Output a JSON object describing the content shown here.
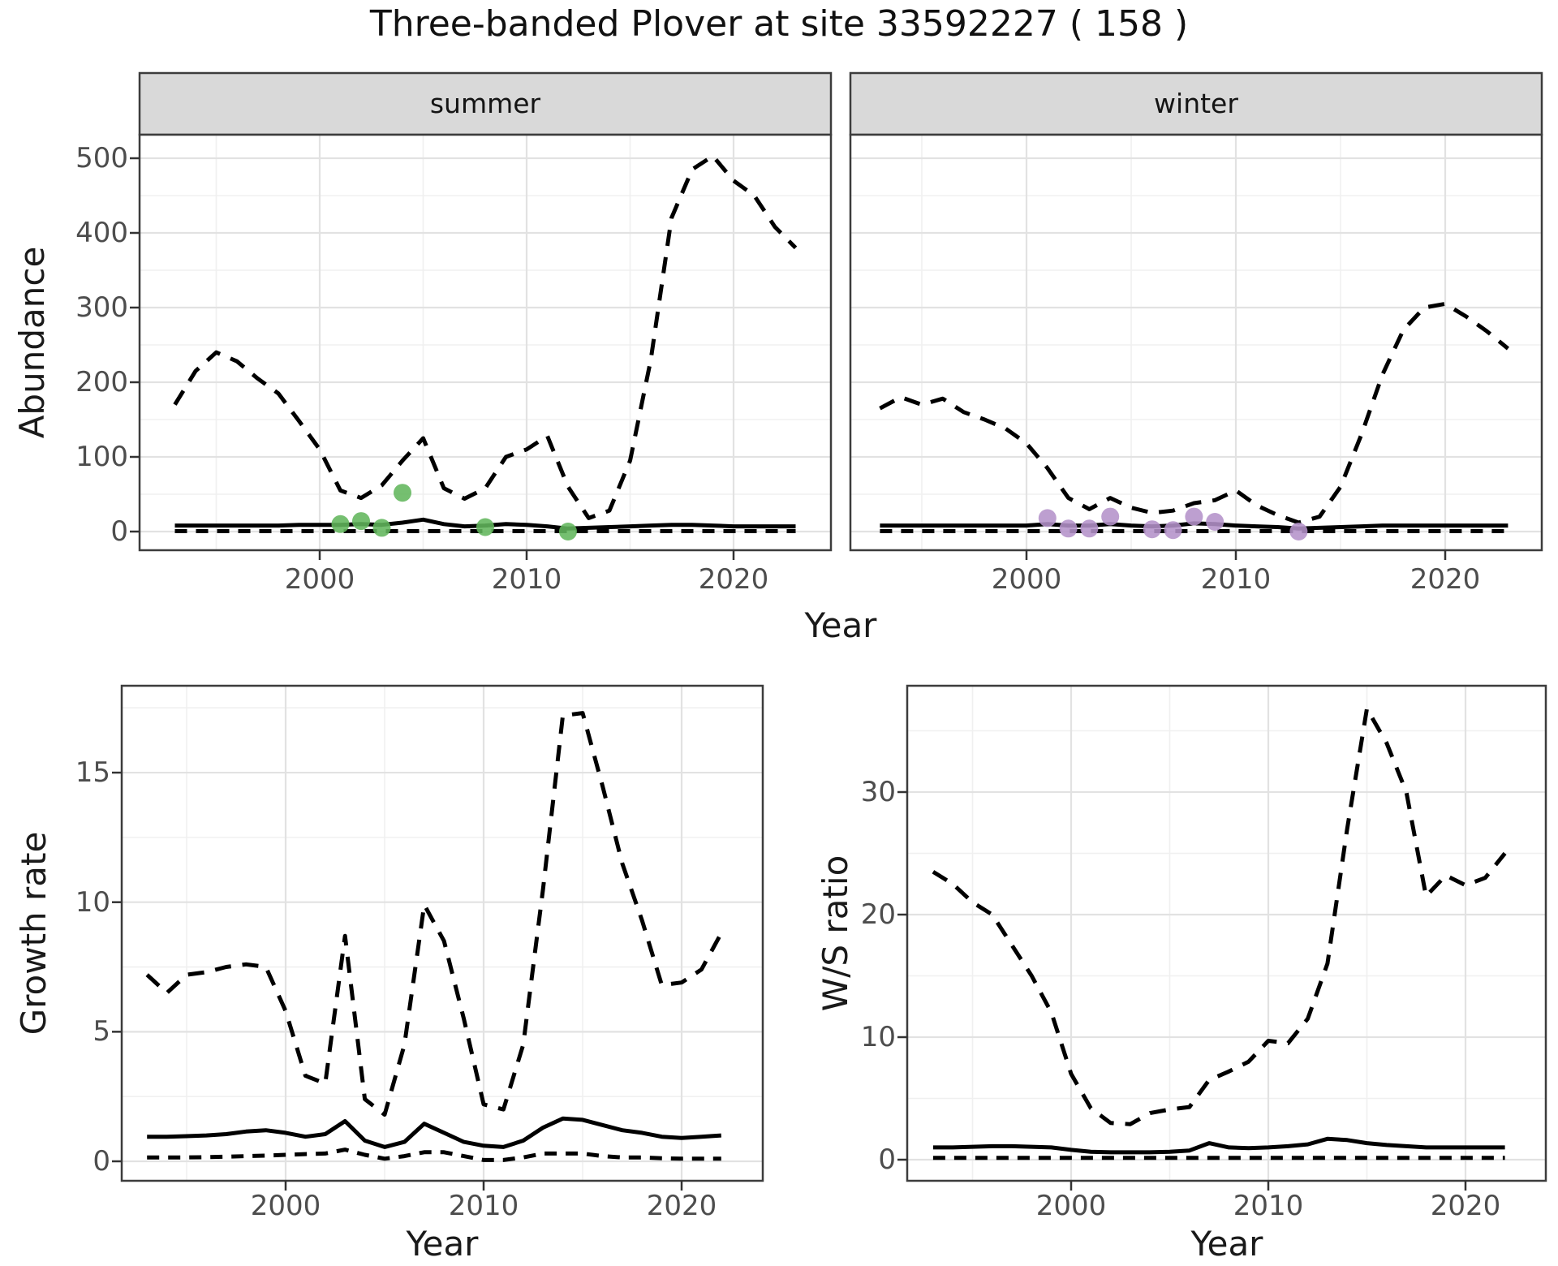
{
  "title": "Three-banded Plover at site 33592227 ( 158 )",
  "top_row": {
    "y_label": "Abundance",
    "x_label": "Year"
  },
  "colors": {
    "summer_points": "#62b65c",
    "winter_points": "#b492ca",
    "line": "#000000",
    "grid_major": "#e2e2e2",
    "grid_minor": "#f0f0f0",
    "panel_border": "#3c3c3c",
    "strip_bg": "#d9d9d9",
    "axis_text": "#4d4d4d",
    "tick_mark": "#333333"
  },
  "chart_data": [
    {
      "id": "abundance-summer",
      "type": "line",
      "facet_label": "summer",
      "ylabel": "Abundance",
      "xlabel": "Year",
      "axis_y": true,
      "x_ticks": [
        2000,
        2010,
        2020
      ],
      "x_minor": [
        1995,
        2005,
        2015
      ],
      "y_ticks": [
        0,
        100,
        200,
        300,
        400,
        500
      ],
      "y_minor": [
        50,
        150,
        250,
        350,
        450
      ],
      "xlim": [
        1991.3,
        2024.7
      ],
      "ylim": [
        -26,
        531
      ],
      "years": [
        1993,
        1994,
        1995,
        1996,
        1997,
        1998,
        1999,
        2000,
        2001,
        2002,
        2003,
        2004,
        2005,
        2006,
        2007,
        2008,
        2009,
        2010,
        2011,
        2012,
        2013,
        2014,
        2015,
        2016,
        2017,
        2018,
        2019,
        2020,
        2021,
        2022,
        2023
      ],
      "series": [
        {
          "name": "upper-ci",
          "style": "dashed",
          "values": [
            170,
            215,
            240,
            228,
            205,
            185,
            148,
            110,
            55,
            45,
            62,
            95,
            125,
            58,
            44,
            58,
            100,
            110,
            128,
            60,
            18,
            28,
            95,
            230,
            420,
            485,
            503,
            470,
            450,
            408,
            380
          ]
        },
        {
          "name": "median",
          "style": "solid",
          "values": [
            8,
            8,
            8,
            8,
            8,
            8,
            9,
            9,
            9,
            10,
            9,
            12,
            16,
            10,
            7,
            8,
            10,
            9,
            7,
            4,
            5,
            6,
            7,
            8,
            9,
            9,
            8,
            7,
            7,
            7,
            7
          ]
        },
        {
          "name": "lower-ci",
          "style": "dashed-short",
          "values": [
            0.5,
            0.5,
            0.5,
            0.5,
            0.5,
            0.5,
            0.5,
            0.5,
            0.5,
            0.5,
            0.5,
            0.5,
            0.5,
            0.5,
            0.5,
            0.5,
            0.5,
            0.5,
            0.5,
            0.5,
            0.5,
            0.5,
            0.5,
            0.5,
            0.5,
            0.5,
            0.5,
            0.5,
            0.5,
            0.5,
            0.5
          ]
        }
      ],
      "points": {
        "name": "observed-counts",
        "color_key": "summer_points",
        "years": [
          2001,
          2002,
          2003,
          2004,
          2008,
          2012
        ],
        "values": [
          10,
          14,
          5,
          52,
          6,
          0
        ]
      }
    },
    {
      "id": "abundance-winter",
      "type": "line",
      "facet_label": "winter",
      "ylabel": "Abundance",
      "xlabel": "Year",
      "axis_y": false,
      "x_ticks": [
        2000,
        2010,
        2020
      ],
      "x_minor": [
        1995,
        2005,
        2015
      ],
      "y_ticks": [
        0,
        100,
        200,
        300,
        400,
        500
      ],
      "y_minor": [
        50,
        150,
        250,
        350,
        450
      ],
      "xlim": [
        1991.6,
        2024.6
      ],
      "ylim": [
        -26,
        531
      ],
      "years": [
        1993,
        1994,
        1995,
        1996,
        1997,
        1998,
        1999,
        2000,
        2001,
        2002,
        2003,
        2004,
        2005,
        2006,
        2007,
        2008,
        2009,
        2010,
        2011,
        2012,
        2013,
        2014,
        2015,
        2016,
        2017,
        2018,
        2019,
        2020,
        2021,
        2022,
        2023
      ],
      "series": [
        {
          "name": "upper-ci",
          "style": "dashed",
          "values": [
            165,
            180,
            170,
            178,
            160,
            150,
            138,
            118,
            85,
            45,
            30,
            45,
            32,
            25,
            28,
            38,
            42,
            55,
            35,
            22,
            12,
            20,
            60,
            130,
            210,
            270,
            300,
            305,
            288,
            268,
            245
          ]
        },
        {
          "name": "median",
          "style": "solid",
          "values": [
            8,
            8,
            8,
            8,
            8,
            8,
            8,
            8,
            10,
            8,
            8,
            10,
            8,
            7,
            8,
            11,
            10,
            8,
            7,
            6,
            4,
            5,
            6,
            7,
            8,
            8,
            8,
            8,
            8,
            8,
            8
          ]
        },
        {
          "name": "lower-ci",
          "style": "dashed-short",
          "values": [
            0.5,
            0.5,
            0.5,
            0.5,
            0.5,
            0.5,
            0.5,
            0.5,
            0.5,
            0.5,
            0.5,
            0.5,
            0.5,
            0.5,
            0.5,
            0.5,
            0.5,
            0.5,
            0.5,
            0.5,
            0.5,
            0.5,
            0.5,
            0.5,
            0.5,
            0.5,
            0.5,
            0.5,
            0.5,
            0.5,
            0.5
          ]
        }
      ],
      "points": {
        "name": "observed-counts",
        "color_key": "winter_points",
        "years": [
          2001,
          2002,
          2003,
          2004,
          2006,
          2007,
          2008,
          2009,
          2013
        ],
        "values": [
          18,
          4,
          4,
          20,
          3,
          2,
          20,
          13,
          0
        ]
      }
    },
    {
      "id": "growth-rate",
      "type": "line",
      "facet_label": null,
      "ylabel": "Growth rate",
      "xlabel": "Year",
      "axis_y": true,
      "x_ticks": [
        2000,
        2010,
        2020
      ],
      "x_minor": [
        1995,
        2005,
        2015
      ],
      "y_ticks": [
        0,
        5,
        10,
        15
      ],
      "y_minor": [
        2.5,
        7.5,
        12.5,
        17.5
      ],
      "xlim": [
        1991.7,
        2024.1
      ],
      "ylim": [
        -0.9,
        18.3
      ],
      "years": [
        1993,
        1994,
        1995,
        1996,
        1997,
        1998,
        1999,
        2000,
        2001,
        2002,
        2003,
        2004,
        2005,
        2006,
        2007,
        2008,
        2009,
        2010,
        2011,
        2012,
        2013,
        2014,
        2015,
        2016,
        2017,
        2018,
        2019,
        2020,
        2021,
        2022
      ],
      "series": [
        {
          "name": "upper-ci",
          "style": "dashed",
          "values": [
            7.2,
            6.5,
            7.2,
            7.3,
            7.5,
            7.6,
            7.5,
            5.8,
            3.3,
            3.0,
            8.7,
            2.4,
            1.8,
            4.5,
            9.9,
            8.5,
            5.5,
            2.2,
            2.0,
            4.5,
            10.5,
            17.2,
            17.3,
            14.5,
            11.5,
            9.3,
            6.8,
            6.9,
            7.4,
            8.8
          ]
        },
        {
          "name": "median",
          "style": "solid",
          "values": [
            0.95,
            0.95,
            0.97,
            1.0,
            1.05,
            1.15,
            1.2,
            1.1,
            0.95,
            1.05,
            1.55,
            0.8,
            0.55,
            0.75,
            1.45,
            1.1,
            0.75,
            0.6,
            0.55,
            0.8,
            1.3,
            1.65,
            1.6,
            1.4,
            1.2,
            1.1,
            0.95,
            0.9,
            0.95,
            1.0
          ]
        },
        {
          "name": "lower-ci",
          "style": "dashed-short",
          "values": [
            0.15,
            0.15,
            0.15,
            0.16,
            0.18,
            0.2,
            0.22,
            0.25,
            0.28,
            0.3,
            0.45,
            0.25,
            0.1,
            0.2,
            0.35,
            0.35,
            0.2,
            0.05,
            0.05,
            0.15,
            0.3,
            0.3,
            0.3,
            0.2,
            0.15,
            0.15,
            0.12,
            0.1,
            0.1,
            0.1
          ]
        }
      ],
      "points": null
    },
    {
      "id": "ws-ratio",
      "type": "line",
      "facet_label": null,
      "ylabel": "W/S ratio",
      "xlabel": "Year",
      "axis_y": true,
      "x_ticks": [
        2000,
        2010,
        2020
      ],
      "x_minor": [
        1995,
        2005,
        2015
      ],
      "y_ticks": [
        0,
        10,
        20,
        30
      ],
      "y_minor": [
        5,
        15,
        25,
        35
      ],
      "xlim": [
        1991.7,
        2024.1
      ],
      "ylim": [
        -1.7,
        38.7
      ],
      "years": [
        1993,
        1994,
        1995,
        1996,
        1997,
        1998,
        1999,
        2000,
        2001,
        2002,
        2003,
        2004,
        2005,
        2006,
        2007,
        2008,
        2009,
        2010,
        2011,
        2012,
        2013,
        2014,
        2015,
        2016,
        2017,
        2018,
        2019,
        2020,
        2021,
        2022
      ],
      "series": [
        {
          "name": "upper-ci",
          "style": "dashed",
          "values": [
            23.5,
            22.5,
            21.0,
            20.0,
            17.5,
            15.0,
            12.0,
            7.0,
            4.2,
            3.0,
            2.9,
            3.8,
            4.1,
            4.3,
            6.5,
            7.2,
            8.0,
            9.7,
            9.5,
            11.5,
            16.0,
            27.0,
            36.8,
            34.0,
            30.0,
            21.5,
            23.2,
            22.4,
            23.0,
            25.0
          ]
        },
        {
          "name": "median",
          "style": "solid",
          "values": [
            1.0,
            1.0,
            1.05,
            1.1,
            1.1,
            1.05,
            1.0,
            0.8,
            0.65,
            0.6,
            0.6,
            0.6,
            0.65,
            0.75,
            1.35,
            1.0,
            0.95,
            1.0,
            1.1,
            1.25,
            1.7,
            1.6,
            1.35,
            1.2,
            1.1,
            1.0,
            1.0,
            1.0,
            1.0,
            1.0
          ]
        },
        {
          "name": "lower-ci",
          "style": "dashed-short",
          "values": [
            0.15,
            0.15,
            0.15,
            0.15,
            0.15,
            0.15,
            0.15,
            0.15,
            0.15,
            0.15,
            0.15,
            0.15,
            0.15,
            0.15,
            0.15,
            0.15,
            0.15,
            0.15,
            0.15,
            0.15,
            0.15,
            0.15,
            0.15,
            0.15,
            0.15,
            0.15,
            0.15,
            0.15,
            0.15,
            0.15
          ]
        }
      ],
      "points": null
    }
  ]
}
